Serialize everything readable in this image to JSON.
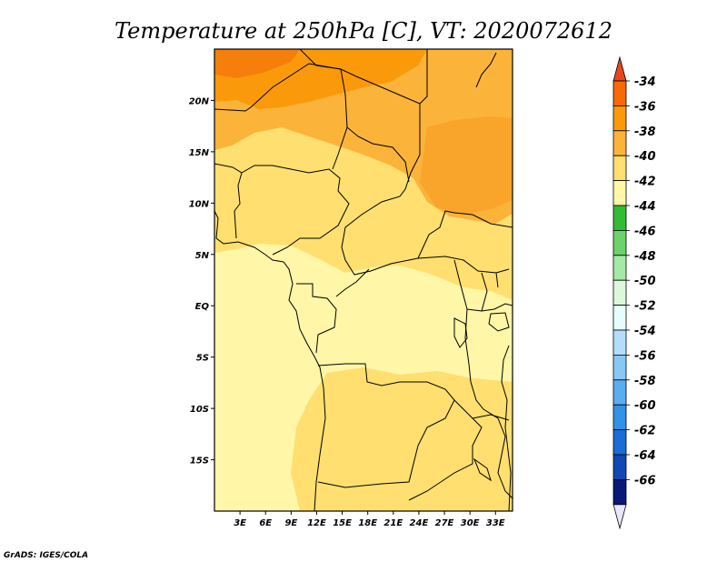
{
  "chart_data": {
    "type": "heatmap",
    "title": "Temperature at 250hPa [C], VT: 2020072612",
    "x_tick_labels": [
      "3E",
      "6E",
      "9E",
      "12E",
      "15E",
      "18E",
      "21E",
      "24E",
      "27E",
      "30E",
      "33E"
    ],
    "x_tick_values": [
      3,
      6,
      9,
      12,
      15,
      18,
      21,
      24,
      27,
      30,
      33
    ],
    "y_tick_labels": [
      "20N",
      "15N",
      "10N",
      "5N",
      "EQ",
      "5S",
      "10S",
      "15S"
    ],
    "y_tick_values": [
      20,
      15,
      10,
      5,
      0,
      -5,
      -10,
      -15
    ],
    "xlim": [
      0,
      35
    ],
    "ylim": [
      -20,
      25
    ],
    "colorbar": {
      "labels": [
        "-34",
        "-36",
        "-38",
        "-40",
        "-42",
        "-44",
        "-46",
        "-48",
        "-50",
        "-52",
        "-54",
        "-56",
        "-58",
        "-60",
        "-62",
        "-64",
        "-66"
      ],
      "colors": [
        "#e8471c",
        "#f76a05",
        "#fa9a0a",
        "#fbb33a",
        "#fedf70",
        "#fff6a7",
        "#33bb33",
        "#6cd36c",
        "#a6e8a6",
        "#dcf8dc",
        "#e6fdfd",
        "#b3def9",
        "#8ac8f4",
        "#5aaeef",
        "#3192e6",
        "#1a6cd6",
        "#1147b4",
        "#0a1878",
        "#e8e8f8"
      ]
    },
    "credit": "GrADS: IGES/COLA"
  }
}
